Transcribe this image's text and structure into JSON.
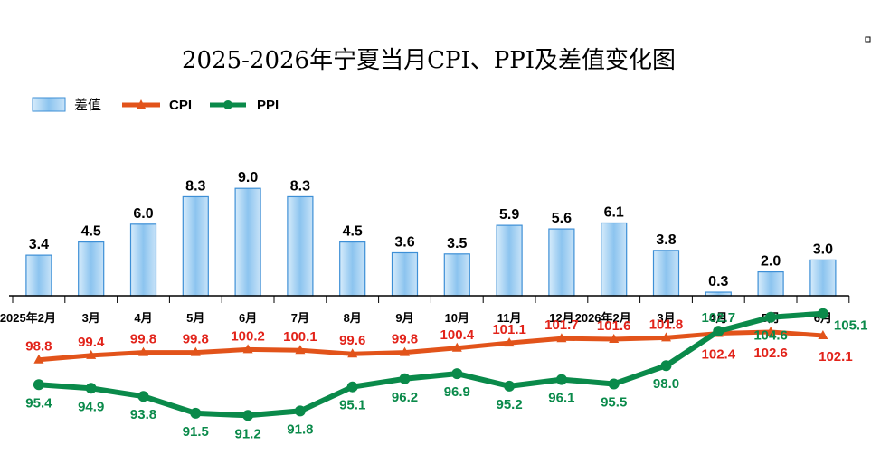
{
  "chart_data": {
    "type": "bar",
    "title": "2025-2026年宁夏当月CPI、PPI及差值变化图",
    "categories": [
      "2025年2月",
      "3月",
      "4月",
      "5月",
      "6月",
      "7月",
      "8月",
      "9月",
      "10月",
      "11月",
      "12月",
      "2026年2月",
      "3月",
      "4月",
      "5月",
      "6月"
    ],
    "series": [
      {
        "name": "差值",
        "type": "bar",
        "values": [
          3.4,
          4.5,
          6.0,
          8.3,
          9.0,
          8.3,
          4.5,
          3.6,
          3.5,
          5.9,
          5.6,
          6.1,
          3.8,
          0.3,
          2.0,
          3.0
        ],
        "labels": [
          "3.4",
          "4.5",
          "6.0",
          "8.3",
          "9.0",
          "8.3",
          "4.5",
          "3.6",
          "3.5",
          "5.9",
          "5.6",
          "6.1",
          "3.8",
          "0.3",
          "2.0",
          "3.0"
        ]
      },
      {
        "name": "CPI",
        "type": "line",
        "values": [
          98.8,
          99.4,
          99.8,
          99.8,
          100.2,
          100.1,
          99.6,
          99.8,
          100.4,
          101.1,
          101.7,
          101.6,
          101.8,
          102.4,
          102.6,
          102.1
        ],
        "labels": [
          "98.8",
          "99.4",
          "99.8",
          "99.8",
          "100.2",
          "100.1",
          "99.6",
          "99.8",
          "100.4",
          "101.1",
          "101.7",
          "101.6",
          "101.8",
          "102.4",
          "102.6",
          "102.1"
        ]
      },
      {
        "name": "PPI",
        "type": "line",
        "values": [
          95.4,
          94.9,
          93.8,
          91.5,
          91.2,
          91.8,
          95.1,
          96.2,
          96.9,
          95.2,
          96.1,
          95.5,
          98.0,
          102.7,
          104.6,
          105.1
        ],
        "labels": [
          "95.4",
          "94.9",
          "93.8",
          "91.5",
          "91.2",
          "91.8",
          "95.1",
          "96.2",
          "96.9",
          "95.2",
          "96.1",
          "95.5",
          "98.0",
          "102.7",
          "104.6",
          "105.1"
        ]
      }
    ],
    "legend": {
      "position": "top-left",
      "items": [
        "差值",
        "CPI",
        "PPI"
      ]
    },
    "colors": {
      "bar_fill": "#9fcdf0",
      "bar_edge": "#3d8fd6",
      "cpi": "#e2531a",
      "cpi_label": "#e2231a",
      "ppi": "#0a8a4a"
    },
    "grid": false
  }
}
